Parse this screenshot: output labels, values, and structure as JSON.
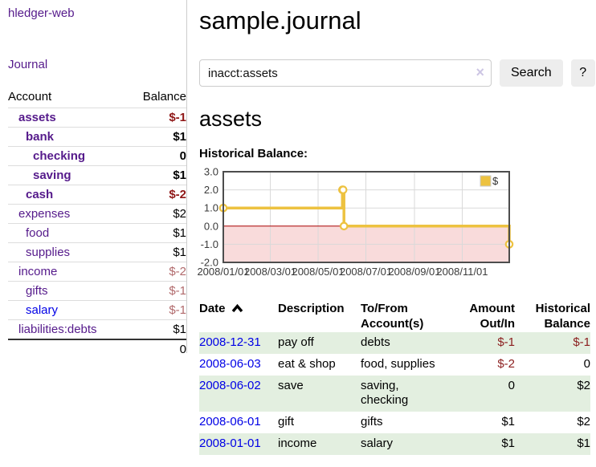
{
  "sidebar": {
    "app_title": "hledger-web",
    "journal_link": "Journal",
    "table": {
      "account_header": "Account",
      "balance_header": "Balance",
      "accounts": [
        {
          "name": "assets",
          "depth": 1,
          "bold": true,
          "balance": "$-1",
          "balance_style": "neg-strong"
        },
        {
          "name": "bank",
          "depth": 2,
          "bold": true,
          "balance": "$1",
          "balance_style": "pos"
        },
        {
          "name": "checking",
          "depth": 3,
          "bold": true,
          "balance": "0",
          "balance_style": "pos"
        },
        {
          "name": "saving",
          "depth": 3,
          "bold": true,
          "balance": "$1",
          "balance_style": "pos"
        },
        {
          "name": "cash",
          "depth": 2,
          "bold": true,
          "balance": "$-2",
          "balance_style": "neg-strong"
        },
        {
          "name": "expenses",
          "depth": 1,
          "bold": false,
          "balance": "$2",
          "balance_style": "pos"
        },
        {
          "name": "food",
          "depth": 2,
          "bold": false,
          "balance": "$1",
          "balance_style": "pos"
        },
        {
          "name": "supplies",
          "depth": 2,
          "bold": false,
          "balance": "$1",
          "balance_style": "pos"
        },
        {
          "name": "income",
          "depth": 1,
          "bold": false,
          "balance": "$-2",
          "balance_style": "neg-muted"
        },
        {
          "name": "gifts",
          "depth": 2,
          "bold": false,
          "balance": "$-1",
          "balance_style": "neg-muted"
        },
        {
          "name": "salary",
          "depth": 2,
          "bold": false,
          "balance": "$-1",
          "balance_style": "neg-muted",
          "unvisited": true
        },
        {
          "name": "liabilities:debts",
          "depth": 1,
          "bold": false,
          "balance": "$1",
          "balance_style": "pos"
        }
      ],
      "total": "0"
    }
  },
  "main": {
    "title": "sample.journal",
    "search": {
      "value": "inacct:assets",
      "clear_icon": "×",
      "button_label": "Search",
      "help_label": "?"
    },
    "account_heading": "assets",
    "chart_label": "Historical Balance:"
  },
  "chart_data": {
    "type": "line",
    "steps": true,
    "title": "Historical Balance",
    "legend": [
      {
        "label": "$",
        "color": "#edc240"
      }
    ],
    "legend_position": "top-right",
    "grid": true,
    "ylim": [
      -2,
      3
    ],
    "y_ticks": [
      "3.0",
      "2.0",
      "1.0",
      "0.0",
      "-1.0",
      "-2.0"
    ],
    "x_ticks": [
      "2008/01/01",
      "2008/03/01",
      "2008/05/01",
      "2008/07/01",
      "2008/09/01",
      "2008/11/01"
    ],
    "xlim_dates": [
      "2008-01-01",
      "2008-12-31"
    ],
    "points": [
      {
        "date": "2008-01-01",
        "value": 1
      },
      {
        "date": "2008-06-01",
        "value": 2
      },
      {
        "date": "2008-06-02",
        "value": 2
      },
      {
        "date": "2008-06-03",
        "value": 0
      },
      {
        "date": "2008-12-31",
        "value": -1
      }
    ],
    "series_color": "#edc240",
    "negative_region_color": "#f9dbdb",
    "zero_line_color": "#aa0000"
  },
  "register": {
    "headers": {
      "date": "Date",
      "sort_icon": "chevron-up",
      "description": "Description",
      "tofrom": "To/From Account(s)",
      "amount": "Amount Out/In",
      "balance": "Historical Balance"
    },
    "rows": [
      {
        "date": "2008-12-31",
        "description": "pay off",
        "tofrom": "debts",
        "amount": "$-1",
        "amount_neg": true,
        "balance": "$-1",
        "balance_neg": true
      },
      {
        "date": "2008-06-03",
        "description": "eat & shop",
        "tofrom": "food, supplies",
        "amount": "$-2",
        "amount_neg": true,
        "balance": "0",
        "balance_neg": false
      },
      {
        "date": "2008-06-02",
        "description": "save",
        "tofrom": "saving,\nchecking",
        "amount": "0",
        "amount_neg": false,
        "balance": "$2",
        "balance_neg": false
      },
      {
        "date": "2008-06-01",
        "description": "gift",
        "tofrom": "gifts",
        "amount": "$1",
        "amount_neg": false,
        "balance": "$2",
        "balance_neg": false
      },
      {
        "date": "2008-01-01",
        "description": "income",
        "tofrom": "salary",
        "amount": "$1",
        "amount_neg": false,
        "balance": "$1",
        "balance_neg": false
      }
    ]
  }
}
